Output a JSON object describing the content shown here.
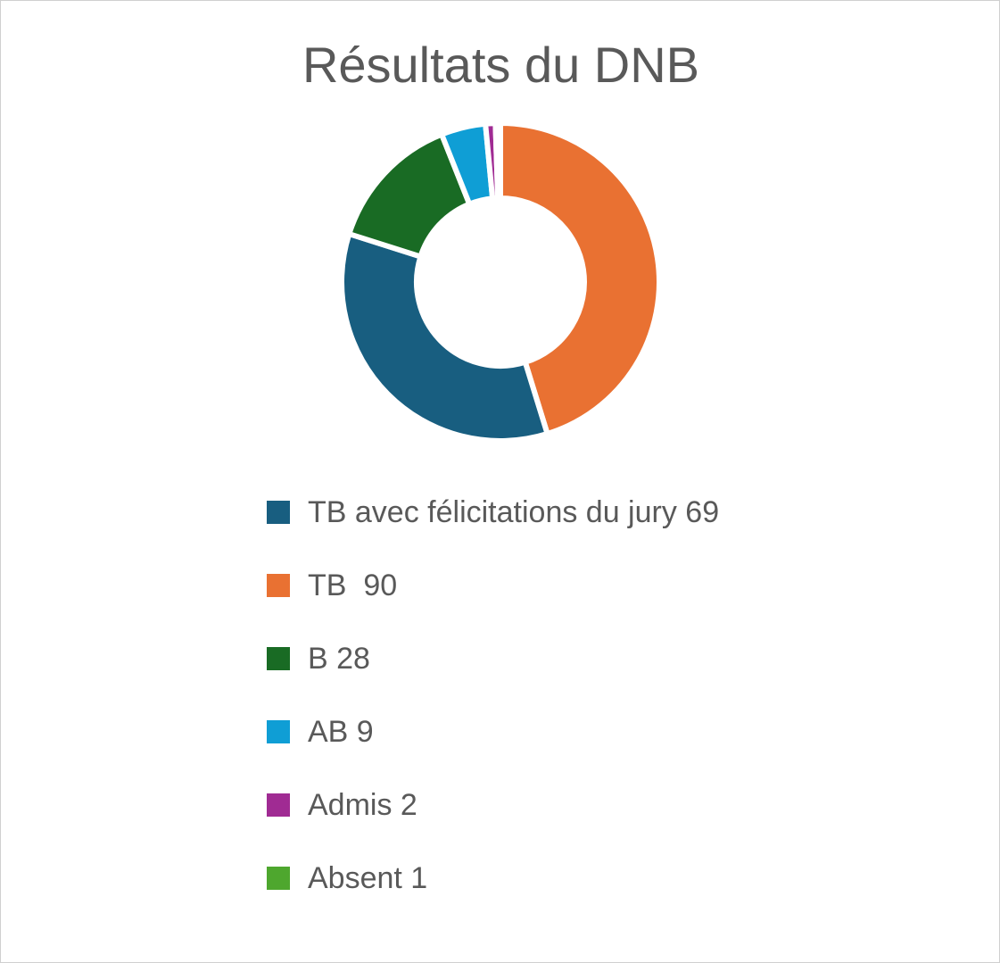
{
  "chart_data": {
    "type": "pie",
    "title": "Résultats du DNB",
    "donut": true,
    "legend_position": "bottom",
    "categories": [
      "TB avec félicitations du jury 69",
      "TB  90",
      "B 28",
      "AB 9",
      "Admis 2",
      "Absent 1"
    ],
    "values": [
      69,
      90,
      28,
      9,
      2,
      1
    ],
    "colors": [
      "#185e80",
      "#e97132",
      "#196b24",
      "#0f9ed5",
      "#a02b93",
      "#4ea72e"
    ],
    "slice_order_clockwise_from_top": [
      1,
      0,
      2,
      3,
      4,
      5
    ]
  }
}
